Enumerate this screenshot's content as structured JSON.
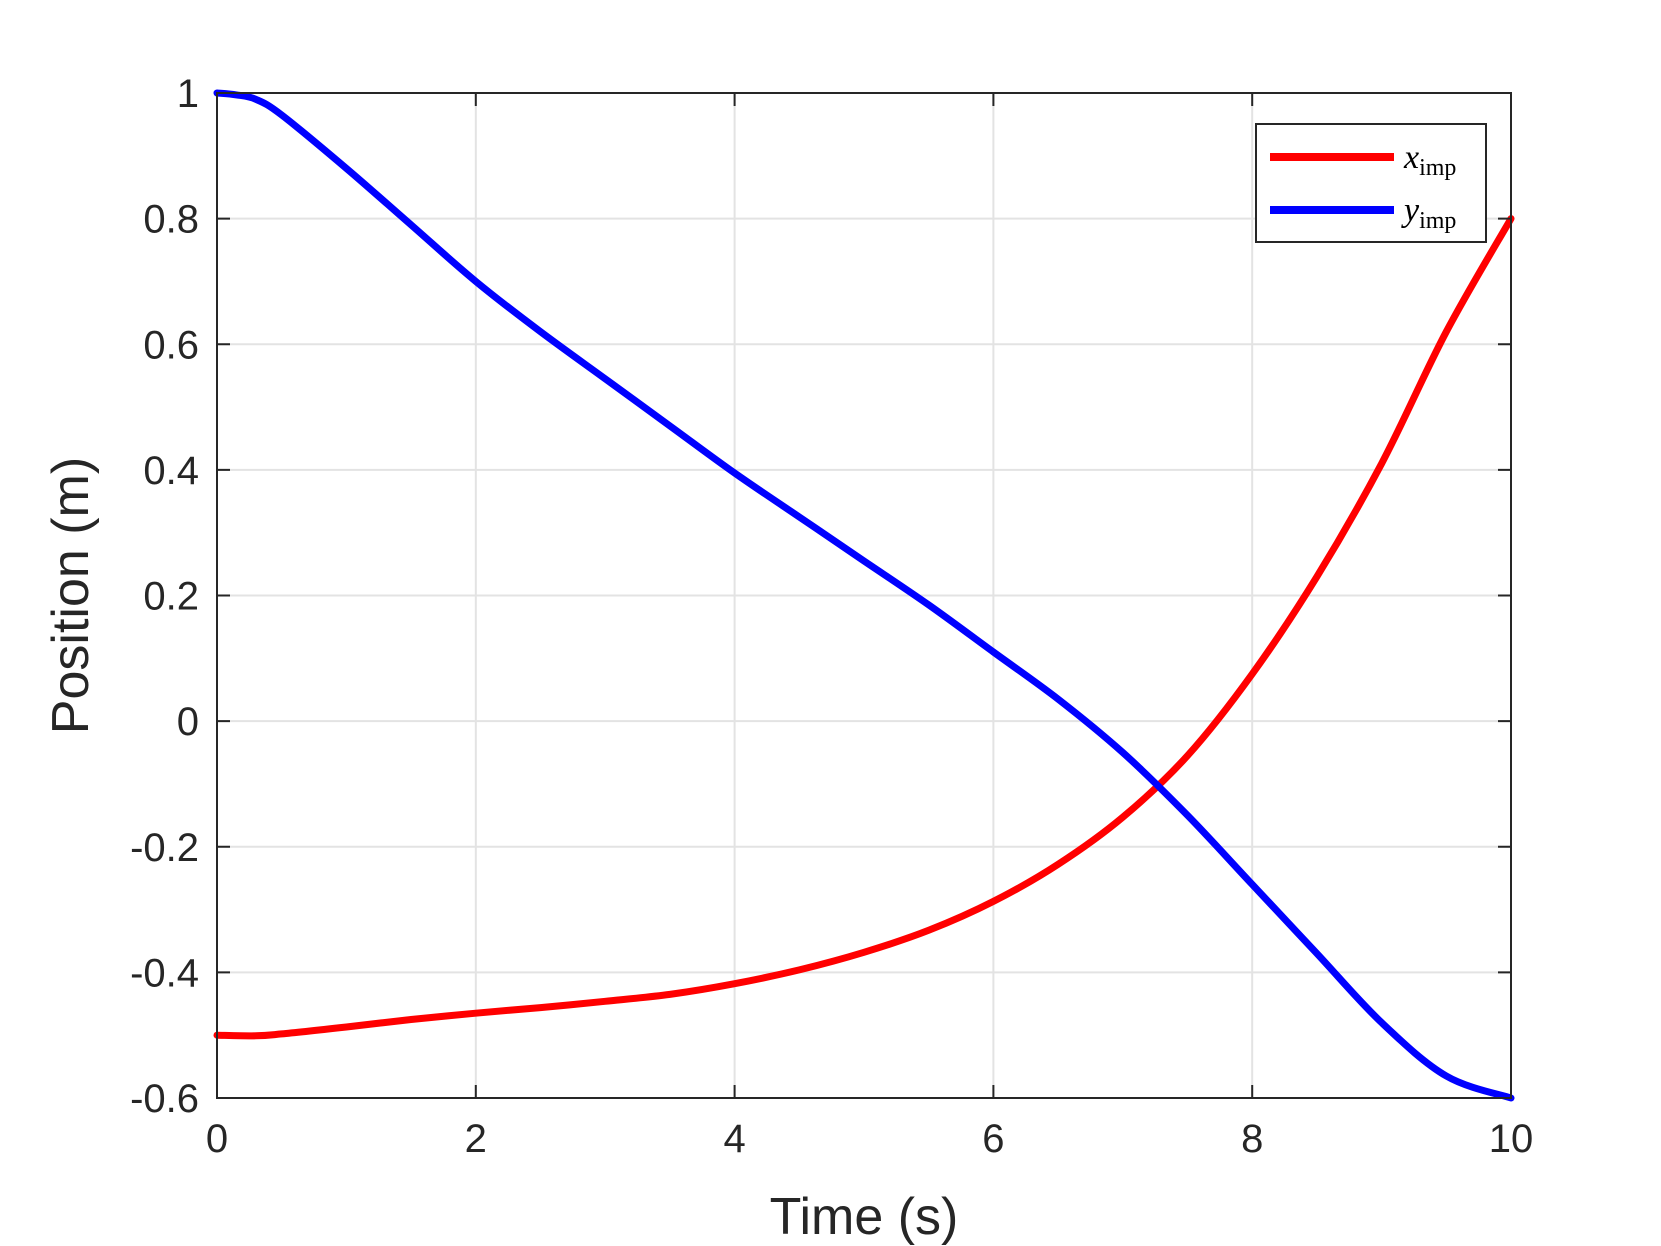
{
  "chart_data": {
    "type": "line",
    "xlabel": "Time (s)",
    "ylabel": "Position (m)",
    "xlim": [
      0,
      10
    ],
    "ylim": [
      -0.6,
      1
    ],
    "xticks": [
      0,
      2,
      4,
      6,
      8,
      10
    ],
    "xtick_labels": [
      "0",
      "2",
      "4",
      "6",
      "8",
      "10"
    ],
    "yticks": [
      -0.6,
      -0.4,
      -0.2,
      0,
      0.2,
      0.4,
      0.6,
      0.8,
      1
    ],
    "ytick_labels": [
      "-0.6",
      "-0.4",
      "-0.2",
      "0",
      "0.2",
      "0.4",
      "0.6",
      "0.8",
      "1"
    ],
    "grid": true,
    "legend_position": "top-right",
    "series": [
      {
        "name": "x",
        "name_subscript": "imp",
        "color": "#ff0000",
        "x": [
          0,
          0.3,
          0.5,
          1,
          1.5,
          2,
          2.5,
          3,
          3.5,
          4,
          4.5,
          5,
          5.5,
          6,
          6.5,
          7,
          7.5,
          8,
          8.5,
          9,
          9.5,
          10
        ],
        "y": [
          -0.5,
          -0.501,
          -0.498,
          -0.487,
          -0.475,
          -0.465,
          -0.456,
          -0.446,
          -0.435,
          -0.418,
          -0.396,
          -0.368,
          -0.333,
          -0.287,
          -0.228,
          -0.153,
          -0.055,
          0.075,
          0.23,
          0.41,
          0.62,
          0.8
        ]
      },
      {
        "name": "y",
        "name_subscript": "imp",
        "color": "#0000ff",
        "x": [
          0,
          0.15,
          0.3,
          0.5,
          1,
          1.5,
          2,
          2.5,
          3,
          3.5,
          4,
          4.5,
          5,
          5.5,
          6,
          6.5,
          7,
          7.5,
          8,
          8.5,
          9,
          9.5,
          10
        ],
        "y": [
          1,
          0.997,
          0.99,
          0.965,
          0.88,
          0.79,
          0.7,
          0.62,
          0.545,
          0.47,
          0.395,
          0.325,
          0.255,
          0.185,
          0.11,
          0.035,
          -0.05,
          -0.15,
          -0.26,
          -0.37,
          -0.48,
          -0.565,
          -0.6
        ]
      }
    ]
  }
}
